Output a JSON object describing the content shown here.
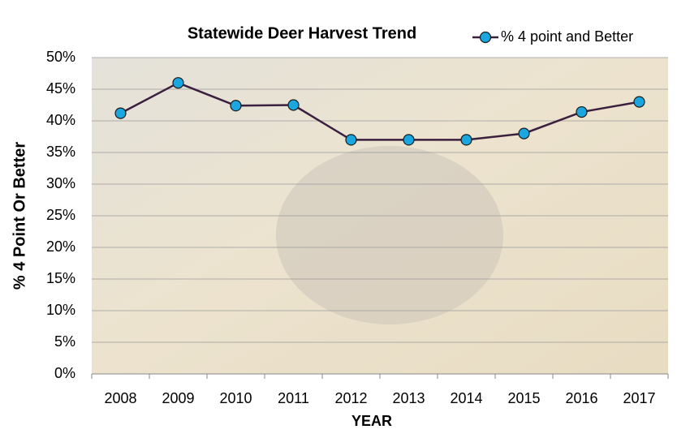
{
  "chart_data": {
    "type": "line",
    "title": "Statewide  Deer Harvest Trend",
    "x_label": "YEAR",
    "y_label": "% 4 Point Or Better",
    "categories": [
      "2008",
      "2009",
      "2010",
      "2011",
      "2012",
      "2013",
      "2014",
      "2015",
      "2016",
      "2017"
    ],
    "series": [
      {
        "name": "% 4 point and Better",
        "color": "#1aa7e0",
        "line_color": "#3b1f3f",
        "values": [
          41.2,
          46,
          42.4,
          42.5,
          37,
          37,
          37,
          38,
          41.4,
          43
        ]
      }
    ],
    "ylim": [
      0,
      50
    ],
    "yticks": [
      {
        "value": 0,
        "label": "0%"
      },
      {
        "value": 5,
        "label": "5%"
      },
      {
        "value": 10,
        "label": "10%"
      },
      {
        "value": 15,
        "label": "15%"
      },
      {
        "value": 20,
        "label": "20%"
      },
      {
        "value": 25,
        "label": "25%"
      },
      {
        "value": 30,
        "label": "30%"
      },
      {
        "value": 35,
        "label": "35%"
      },
      {
        "value": 40,
        "label": "40%"
      },
      {
        "value": 45,
        "label": "45%"
      },
      {
        "value": 50,
        "label": "50%"
      }
    ],
    "grid": true,
    "legend": "top-right"
  }
}
